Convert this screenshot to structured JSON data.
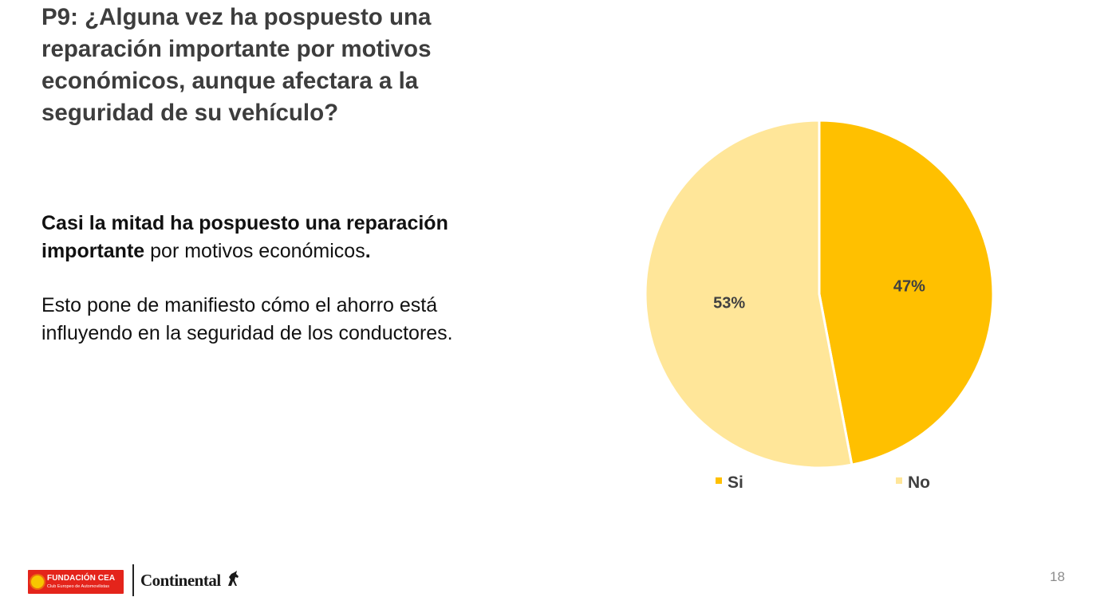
{
  "slide": {
    "title": "P9: ¿Alguna vez ha pospuesto una reparación importante por motivos económicos, aunque afectara a la seguridad de su vehículo?",
    "body": {
      "p1_bold": "Casi la mitad ha pospuesto una reparación importante",
      "p1_rest": " por motivos económicos",
      "p1_end": ".",
      "p2": "Esto pone de manifiesto cómo el ahorro está influyendo en la seguridad de los conductores."
    },
    "page_number": "18"
  },
  "footer": {
    "org_name": "FUNDACIÓN CEA",
    "org_subtitle": "Club Europeo de Automovilistas",
    "partner_name": "Continental"
  },
  "colors": {
    "si": "#FFC000",
    "no": "#FFE699",
    "label": "#404040"
  },
  "chart_data": {
    "type": "pie",
    "categories": [
      "Si",
      "No"
    ],
    "values": [
      47,
      53
    ],
    "labels": [
      "47%",
      "53%"
    ],
    "colors": [
      "#FFC000",
      "#FFE699"
    ],
    "start_angle": "12 o'clock",
    "direction": "clockwise",
    "legend_position": "bottom"
  }
}
